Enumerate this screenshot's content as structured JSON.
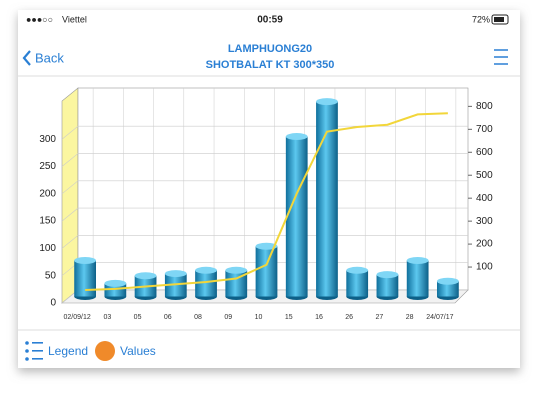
{
  "status_bar": {
    "carrier": "Viettel",
    "time": "00:59",
    "battery": "72%"
  },
  "nav": {
    "back": "Back",
    "title": "LAMPHUONG20",
    "subtitle": "SHOTBALAT KT 300*350"
  },
  "chart_data": {
    "type": "bar",
    "categories": [
      "02/09/12",
      "03",
      "05",
      "06",
      "08",
      "09",
      "10",
      "15",
      "16",
      "26",
      "27",
      "28",
      "24/07/17"
    ],
    "series": [
      {
        "type": "bar",
        "color": "#2aa7d8",
        "values": [
          66,
          24,
          38,
          42,
          48,
          48,
          92,
          293,
          357,
          48,
          40,
          66,
          28
        ]
      },
      {
        "type": "line",
        "axis": "y2",
        "color": "#f2d63a",
        "values": [
          0,
          5,
          15,
          25,
          35,
          50,
          110,
          420,
          690,
          710,
          720,
          765,
          770
        ]
      }
    ],
    "ylim": [
      0,
      370
    ],
    "yticks": [
      0,
      50,
      100,
      150,
      200,
      250,
      300
    ],
    "y2lim": [
      0,
      880
    ],
    "y2ticks": [
      100,
      200,
      300,
      400,
      500,
      600,
      700,
      800
    ],
    "grid": true
  },
  "toolbar": {
    "legend": "Legend",
    "values": "Values"
  }
}
